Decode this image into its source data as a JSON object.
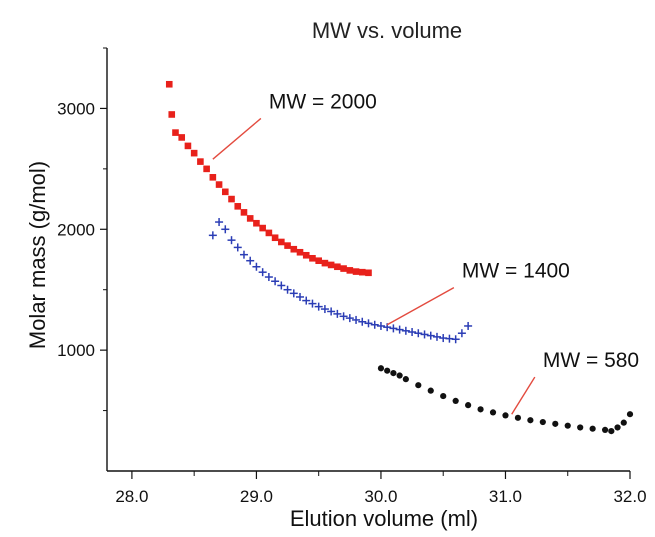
{
  "chart_data": {
    "type": "scatter",
    "title": "MW vs. volume",
    "xlabel": "Elution volume (ml)",
    "ylabel": "Molar mass (g/mol)",
    "xlim": [
      27.8,
      32.0
    ],
    "ylim": [
      0,
      3500
    ],
    "xticks": [
      "28.0",
      "29.0",
      "30.0",
      "31.0",
      "32.0"
    ],
    "yticks": [
      "1000",
      "2000",
      "3000"
    ],
    "grid": false,
    "legend": "none",
    "series": [
      {
        "marker": "square",
        "color": "#e8211b",
        "x": [
          28.3,
          28.32,
          28.35,
          28.4,
          28.45,
          28.5,
          28.55,
          28.6,
          28.65,
          28.7,
          28.75,
          28.8,
          28.85,
          28.9,
          28.95,
          29.0,
          29.05,
          29.1,
          29.15,
          29.2,
          29.25,
          29.3,
          29.35,
          29.4,
          29.45,
          29.5,
          29.55,
          29.6,
          29.65,
          29.7,
          29.75,
          29.8,
          29.85,
          29.9
        ],
        "y": [
          3200,
          2950,
          2800,
          2760,
          2690,
          2630,
          2560,
          2500,
          2430,
          2370,
          2310,
          2250,
          2190,
          2140,
          2090,
          2050,
          2010,
          1970,
          1930,
          1895,
          1865,
          1835,
          1810,
          1785,
          1760,
          1740,
          1720,
          1705,
          1690,
          1675,
          1660,
          1650,
          1645,
          1640
        ]
      },
      {
        "marker": "plus",
        "color": "#2b3db5",
        "x": [
          28.65,
          28.7,
          28.75,
          28.8,
          28.85,
          28.9,
          28.95,
          29.0,
          29.05,
          29.1,
          29.15,
          29.2,
          29.25,
          29.3,
          29.35,
          29.4,
          29.45,
          29.5,
          29.55,
          29.6,
          29.65,
          29.7,
          29.75,
          29.8,
          29.85,
          29.9,
          29.95,
          30.0,
          30.05,
          30.1,
          30.15,
          30.2,
          30.25,
          30.3,
          30.35,
          30.4,
          30.45,
          30.5,
          30.55,
          30.6,
          30.65,
          30.7
        ],
        "y": [
          1950,
          2060,
          2000,
          1910,
          1850,
          1790,
          1740,
          1690,
          1645,
          1605,
          1570,
          1535,
          1500,
          1470,
          1440,
          1410,
          1385,
          1360,
          1340,
          1320,
          1300,
          1280,
          1265,
          1250,
          1235,
          1222,
          1210,
          1200,
          1190,
          1180,
          1170,
          1160,
          1150,
          1140,
          1130,
          1120,
          1110,
          1100,
          1095,
          1090,
          1140,
          1200
        ]
      },
      {
        "marker": "circle",
        "color": "#111111",
        "x": [
          30.0,
          30.05,
          30.1,
          30.15,
          30.2,
          30.3,
          30.4,
          30.5,
          30.6,
          30.7,
          30.8,
          30.9,
          31.0,
          31.1,
          31.2,
          31.3,
          31.4,
          31.5,
          31.6,
          31.7,
          31.8,
          31.85,
          31.9,
          31.95,
          32.0
        ],
        "y": [
          850,
          830,
          810,
          790,
          760,
          710,
          665,
          620,
          580,
          545,
          510,
          485,
          460,
          440,
          420,
          405,
          390,
          375,
          360,
          350,
          340,
          330,
          360,
          400,
          470
        ]
      }
    ],
    "annotations": [
      {
        "text": "MW = 2000",
        "x": 28.65,
        "y": 2580,
        "text_x": 29.1,
        "text_y": 3000
      },
      {
        "text": "MW = 1400",
        "x": 30.05,
        "y": 1210,
        "text_x": 30.65,
        "text_y": 1600
      },
      {
        "text": "MW = 580",
        "x": 31.05,
        "y": 470,
        "text_x": 31.3,
        "text_y": 860
      }
    ]
  }
}
